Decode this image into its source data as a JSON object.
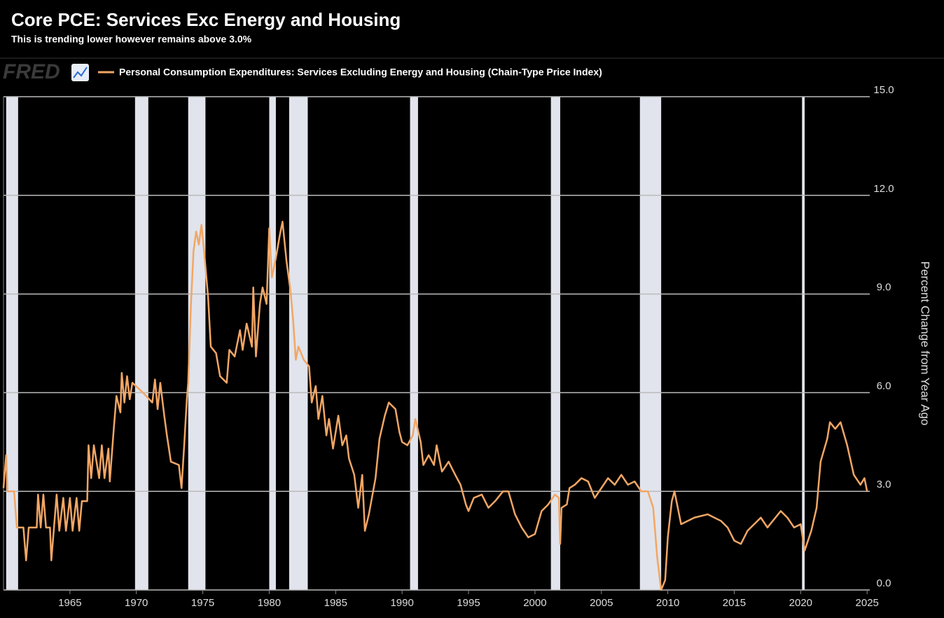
{
  "chart_data": {
    "type": "line",
    "title": "Core PCE: Services Exc Energy and Housing",
    "subtitle": "This is trending lower however remains above 3.0%",
    "logo": "FRED",
    "y_label": "Percent Change from Year Ago",
    "xlim": [
      1960,
      2025.2
    ],
    "xticks": [
      1965,
      1970,
      1975,
      1980,
      1985,
      1990,
      1995,
      2000,
      2005,
      2010,
      2015,
      2020,
      2025
    ],
    "ylim": [
      0,
      15
    ],
    "yticks": [
      {
        "value": 0,
        "label": "0.0"
      },
      {
        "value": 3,
        "label": "3.0"
      },
      {
        "value": 6,
        "label": "6.0"
      },
      {
        "value": 9,
        "label": "9.0"
      },
      {
        "value": 12,
        "label": "12.0"
      },
      {
        "value": 15,
        "label": "15.0"
      }
    ],
    "grid": true,
    "recession_color": "#e1e4ec",
    "recessions": [
      [
        1960.2,
        1961.1
      ],
      [
        1969.9,
        1970.9
      ],
      [
        1973.9,
        1975.2
      ],
      [
        1980.0,
        1980.5
      ],
      [
        1981.5,
        1982.9
      ],
      [
        1990.6,
        1991.2
      ],
      [
        2001.2,
        2001.9
      ],
      [
        2007.9,
        2009.5
      ],
      [
        2020.1,
        2020.3
      ]
    ],
    "x": [
      1960.0,
      1960.2,
      1960.3,
      1960.8,
      1961.0,
      1961.5,
      1961.7,
      1961.9,
      1962.5,
      1962.6,
      1962.8,
      1963.0,
      1963.2,
      1963.5,
      1963.6,
      1963.8,
      1964.0,
      1964.2,
      1964.5,
      1964.7,
      1965.0,
      1965.2,
      1965.5,
      1965.7,
      1965.9,
      1966.3,
      1966.4,
      1966.6,
      1966.8,
      1967.2,
      1967.4,
      1967.6,
      1967.9,
      1968.0,
      1968.3,
      1968.5,
      1968.8,
      1968.9,
      1969.1,
      1969.3,
      1969.5,
      1969.7,
      1970.5,
      1971.2,
      1971.4,
      1971.6,
      1971.8,
      1972.1,
      1972.3,
      1972.6,
      1973.2,
      1973.4,
      1973.6,
      1973.8,
      1973.9,
      1974.1,
      1974.3,
      1974.5,
      1974.7,
      1974.9,
      1975.1,
      1975.4,
      1975.6,
      1976.0,
      1976.3,
      1976.8,
      1977.0,
      1977.4,
      1977.8,
      1978.0,
      1978.3,
      1978.7,
      1978.8,
      1979.0,
      1979.3,
      1979.5,
      1979.8,
      1980.0,
      1980.2,
      1980.5,
      1980.8,
      1981.0,
      1981.3,
      1981.6,
      1981.8,
      1982.0,
      1982.2,
      1982.6,
      1983.0,
      1983.2,
      1983.5,
      1983.7,
      1984.0,
      1984.3,
      1984.5,
      1984.8,
      1985.2,
      1985.5,
      1985.8,
      1986.0,
      1986.4,
      1986.7,
      1987.0,
      1987.2,
      1987.5,
      1988.0,
      1988.3,
      1988.7,
      1989.0,
      1989.5,
      1989.8,
      1990.0,
      1990.4,
      1990.8,
      1991.0,
      1991.4,
      1991.6,
      1992.0,
      1992.4,
      1992.6,
      1993.0,
      1993.5,
      1994.0,
      1994.4,
      1994.8,
      1995.0,
      1995.4,
      1996.0,
      1996.5,
      1997.0,
      1997.6,
      1998.0,
      1998.5,
      1999.0,
      1999.5,
      2000.0,
      2000.5,
      2001.0,
      2001.5,
      2001.8,
      2001.9,
      2002.0,
      2002.4,
      2002.6,
      2003.0,
      2003.5,
      2004.0,
      2004.5,
      2005.0,
      2005.5,
      2006.0,
      2006.5,
      2007.0,
      2007.5,
      2008.0,
      2008.5,
      2008.9,
      2009.2,
      2009.5,
      2009.8,
      2010.0,
      2010.3,
      2010.5,
      2010.8,
      2011.0,
      2012.0,
      2013.0,
      2014.0,
      2014.5,
      2015.0,
      2015.5,
      2016.0,
      2017.0,
      2017.5,
      2018.5,
      2019.0,
      2019.5,
      2020.0,
      2020.3,
      2020.8,
      2021.2,
      2021.5,
      2022.0,
      2022.2,
      2022.6,
      2023.0,
      2023.5,
      2024.0,
      2024.5,
      2024.8,
      2025.0
    ],
    "series": [
      {
        "name": "Personal Consumption Expenditures: Services Excluding Energy and Housing (Chain-Type Price Index)",
        "color": "#f2a665",
        "values": [
          3.1,
          4.1,
          3.0,
          3.0,
          1.9,
          1.9,
          0.9,
          1.9,
          1.9,
          2.9,
          1.9,
          2.9,
          1.9,
          1.9,
          0.9,
          1.9,
          2.9,
          1.8,
          2.8,
          1.8,
          2.8,
          1.8,
          2.8,
          1.8,
          2.7,
          2.7,
          4.4,
          3.4,
          4.4,
          3.4,
          4.4,
          3.4,
          4.3,
          3.3,
          4.9,
          5.9,
          5.4,
          6.6,
          5.7,
          6.5,
          5.8,
          6.3,
          6.0,
          5.7,
          6.4,
          5.5,
          6.3,
          5.3,
          4.7,
          3.9,
          3.8,
          3.1,
          4.4,
          5.8,
          6.3,
          8.6,
          10.3,
          10.9,
          10.5,
          11.1,
          10.3,
          8.9,
          7.4,
          7.2,
          6.5,
          6.3,
          7.3,
          7.1,
          7.9,
          7.3,
          8.1,
          7.4,
          9.2,
          7.1,
          8.7,
          9.2,
          8.7,
          11.0,
          9.5,
          10.1,
          10.8,
          11.2,
          10.0,
          9.1,
          8.2,
          7.0,
          7.4,
          7.0,
          6.8,
          5.7,
          6.2,
          5.2,
          5.9,
          4.7,
          5.2,
          4.3,
          5.3,
          4.4,
          4.7,
          4.0,
          3.5,
          2.5,
          3.5,
          1.8,
          2.3,
          3.4,
          4.6,
          5.3,
          5.7,
          5.5,
          4.8,
          4.5,
          4.4,
          4.7,
          5.2,
          4.5,
          3.8,
          4.1,
          3.8,
          4.4,
          3.6,
          3.9,
          3.5,
          3.2,
          2.6,
          2.4,
          2.8,
          2.9,
          2.5,
          2.7,
          3.0,
          3.0,
          2.3,
          1.9,
          1.6,
          1.7,
          2.4,
          2.6,
          2.9,
          2.8,
          1.4,
          2.5,
          2.6,
          3.1,
          3.2,
          3.4,
          3.3,
          2.8,
          3.1,
          3.4,
          3.2,
          3.5,
          3.2,
          3.3,
          3.0,
          3.0,
          2.5,
          1.0,
          0.0,
          0.3,
          1.6,
          2.7,
          3.0,
          2.4,
          2.0,
          2.2,
          2.3,
          2.1,
          1.9,
          1.5,
          1.4,
          1.8,
          2.2,
          1.9,
          2.4,
          2.2,
          1.9,
          2.0,
          1.2,
          1.8,
          2.5,
          3.9,
          4.6,
          5.1,
          4.9,
          5.1,
          4.4,
          3.5,
          3.2,
          3.4,
          3.0
        ]
      }
    ]
  }
}
